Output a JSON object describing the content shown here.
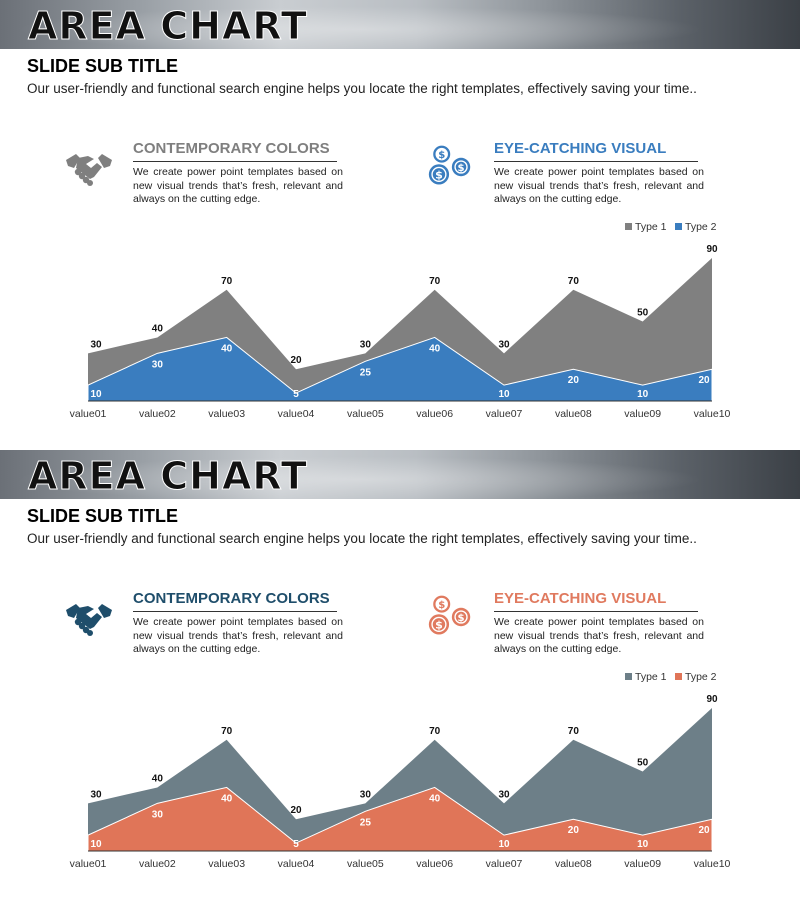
{
  "slides": [
    {
      "title": "AREA CHART",
      "subtitle": "SLIDE SUB TITLE",
      "description": "Our user-friendly and functional search engine helps you locate the right templates, effectively saving your time..",
      "features": [
        {
          "title": "CONTEMPORARY COLORS",
          "body": "We create power point templates based on new visual trends that’s fresh, relevant and always on the cutting edge.",
          "icon": "handshake-icon",
          "color": "#7f7f7f"
        },
        {
          "title": "EYE-CATCHING VISUAL",
          "body": "We create power point templates based on new visual trends that’s fresh, relevant and always on the cutting edge.",
          "icon": "dollar-coins-icon",
          "color": "#3a7dbf"
        }
      ],
      "colors": {
        "type1": "#808080",
        "type2": "#3a7dbf"
      }
    },
    {
      "title": "AREA CHART",
      "subtitle": "SLIDE SUB TITLE",
      "description": "Our user-friendly and functional search engine helps you locate the right templates, effectively saving your time..",
      "features": [
        {
          "title": "CONTEMPORARY COLORS",
          "body": "We create power point templates based on new visual trends that’s fresh, relevant and always on the cutting edge.",
          "icon": "handshake-icon",
          "color": "#1f4e6b"
        },
        {
          "title": "EYE-CATCHING VISUAL",
          "body": "We create power point templates based on new visual trends that’s fresh, relevant and always on the cutting edge.",
          "icon": "dollar-coins-icon",
          "color": "#e07a5f"
        }
      ],
      "colors": {
        "type1": "#6d7f88",
        "type2": "#e07558"
      }
    }
  ],
  "chart_data": [
    {
      "type": "area",
      "categories": [
        "value01",
        "value02",
        "value03",
        "value04",
        "value05",
        "value06",
        "value07",
        "value08",
        "value09",
        "value10"
      ],
      "series": [
        {
          "name": "Type 1",
          "values": [
            30,
            40,
            70,
            20,
            30,
            70,
            30,
            70,
            50,
            90
          ]
        },
        {
          "name": "Type 2",
          "values": [
            10,
            30,
            40,
            5,
            25,
            40,
            10,
            20,
            10,
            20
          ]
        }
      ],
      "ylim": [
        0,
        90
      ],
      "legend": "top-right",
      "grid": false
    },
    {
      "type": "area",
      "categories": [
        "value01",
        "value02",
        "value03",
        "value04",
        "value05",
        "value06",
        "value07",
        "value08",
        "value09",
        "value10"
      ],
      "series": [
        {
          "name": "Type 1",
          "values": [
            30,
            40,
            70,
            20,
            30,
            70,
            30,
            70,
            50,
            90
          ]
        },
        {
          "name": "Type 2",
          "values": [
            10,
            30,
            40,
            5,
            25,
            40,
            10,
            20,
            10,
            20
          ]
        }
      ],
      "ylim": [
        0,
        90
      ],
      "legend": "top-right",
      "grid": false
    }
  ]
}
